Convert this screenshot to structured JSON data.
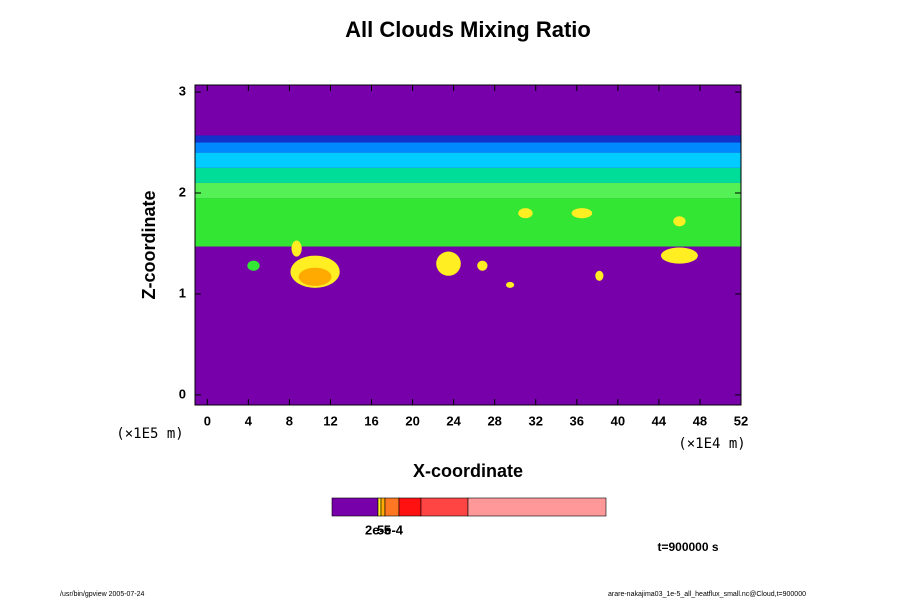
{
  "chart_data": {
    "type": "contour",
    "title": "All Clouds Mixing Ratio",
    "xlabel": "X-coordinate",
    "ylabel": "Z-coordinate",
    "xunit": "(×1E4 m)",
    "yunit": "(×1E5 m)",
    "xlim": [
      -1.2,
      52
    ],
    "ylim": [
      -0.1,
      3.07
    ],
    "xticks": [
      0,
      4,
      8,
      12,
      16,
      20,
      24,
      28,
      32,
      36,
      40,
      44,
      48,
      52
    ],
    "yticks": [
      0,
      1,
      2,
      3
    ],
    "background": "#7700aa",
    "bands": [
      {
        "ylim": [
          1.47,
          1.95
        ],
        "color": "#33e633"
      },
      {
        "ylim": [
          1.95,
          2.1
        ],
        "color": "#55f055"
      },
      {
        "ylim": [
          2.1,
          2.25
        ],
        "color": "#00dd99"
      },
      {
        "ylim": [
          2.25,
          2.4
        ],
        "color": "#00ccff"
      },
      {
        "ylim": [
          2.4,
          2.5
        ],
        "color": "#0088ff"
      },
      {
        "ylim": [
          2.5,
          2.57
        ],
        "color": "#1133cc"
      }
    ],
    "blobs": [
      {
        "x": 10.5,
        "y": 1.22,
        "rx": 2.4,
        "ry": 0.16,
        "color": "#ffee22"
      },
      {
        "x": 10.5,
        "y": 1.17,
        "rx": 1.6,
        "ry": 0.09,
        "color": "#ffaa00"
      },
      {
        "x": 4.5,
        "y": 1.28,
        "rx": 0.6,
        "ry": 0.05,
        "color": "#33e633"
      },
      {
        "x": 8.7,
        "y": 1.45,
        "rx": 0.5,
        "ry": 0.08,
        "color": "#ffee22"
      },
      {
        "x": 23.5,
        "y": 1.3,
        "rx": 1.2,
        "ry": 0.12,
        "color": "#ffee22"
      },
      {
        "x": 26.8,
        "y": 1.28,
        "rx": 0.5,
        "ry": 0.05,
        "color": "#ffee22"
      },
      {
        "x": 29.5,
        "y": 1.09,
        "rx": 0.4,
        "ry": 0.03,
        "color": "#ffee22"
      },
      {
        "x": 38.2,
        "y": 1.18,
        "rx": 0.4,
        "ry": 0.05,
        "color": "#ffee22"
      },
      {
        "x": 46,
        "y": 1.38,
        "rx": 1.8,
        "ry": 0.08,
        "color": "#ffee22"
      },
      {
        "x": 31,
        "y": 1.8,
        "rx": 0.7,
        "ry": 0.05,
        "color": "#ffee22"
      },
      {
        "x": 36.5,
        "y": 1.8,
        "rx": 1,
        "ry": 0.05,
        "color": "#ffee22"
      },
      {
        "x": 46,
        "y": 1.72,
        "rx": 0.6,
        "ry": 0.05,
        "color": "#ffee22"
      }
    ],
    "colorbar": {
      "colors": [
        "#7700aa",
        "#ffee22",
        "#ffaa00",
        "#ff7722",
        "#ff1111",
        "#ff4444",
        "#ff9999"
      ],
      "ticks": [
        "2e-5",
        "5e-4"
      ]
    },
    "time_label": "t=900000 s",
    "footer_left": "/usr/bin/gpview 2005-07-24",
    "footer_right": "arare-nakajima03_1e-5_all_heatflux_small.nc@Cloud,t=900000"
  }
}
